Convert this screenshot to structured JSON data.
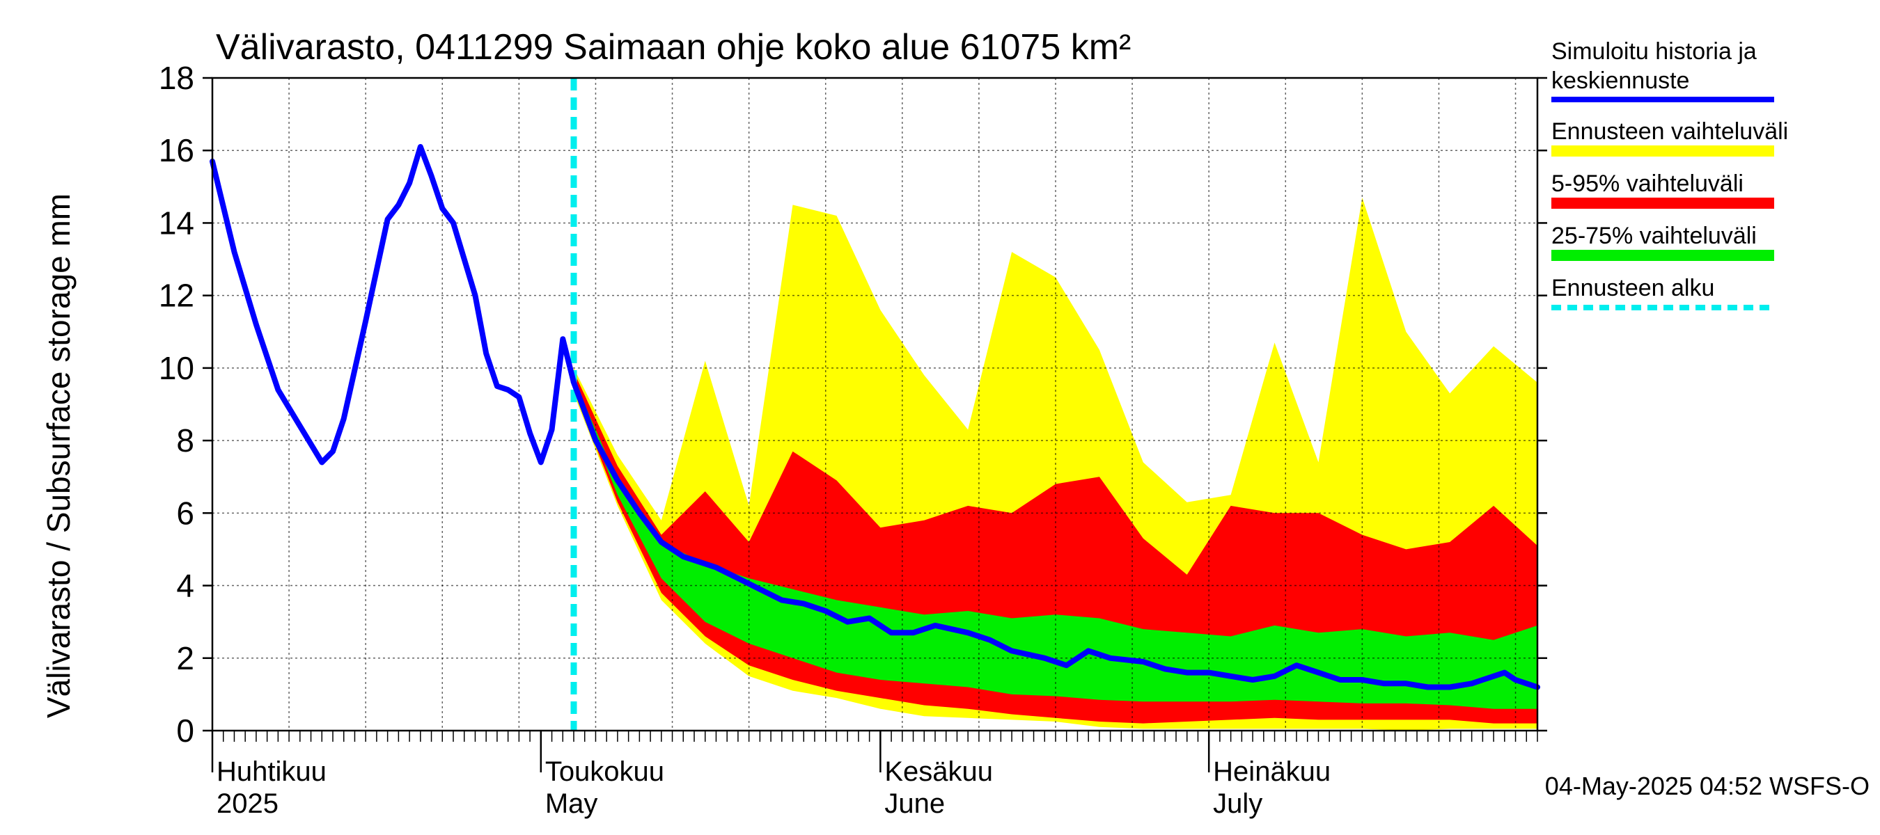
{
  "chart_data": {
    "type": "area",
    "title": "Välivarasto, 0411299 Saimaan ohje koko alue 61075 km²",
    "ylabel": "Välivarasto / Subsurface storage  mm",
    "xlabel": "",
    "ylim": [
      0,
      18
    ],
    "yticks": [
      0,
      2,
      4,
      6,
      8,
      10,
      12,
      14,
      16,
      18
    ],
    "xlim": [
      "2025-04-01",
      "2025-07-31"
    ],
    "grid": true,
    "legend_position": "right",
    "footer": "04-May-2025 04:52 WSFS-O",
    "forecast_start": "2025-05-04",
    "month_labels": [
      {
        "date": "2025-04-01",
        "fi": "Huhtikuu",
        "en": "2025"
      },
      {
        "date": "2025-05-01",
        "fi": "Toukokuu",
        "en": "May"
      },
      {
        "date": "2025-06-01",
        "fi": "Kesäkuu",
        "en": "June"
      },
      {
        "date": "2025-07-01",
        "fi": "Heinäkuu",
        "en": "July"
      }
    ],
    "legend": [
      {
        "label": "Simuloitu historia ja keskiennuste",
        "color": "#0000ff",
        "style": "line"
      },
      {
        "label": "Ennusteen vaihteluväli",
        "color": "#ffff00",
        "style": "band"
      },
      {
        "label": "5-95% vaihteluväli",
        "color": "#ff0000",
        "style": "band"
      },
      {
        "label": "25-75% vaihteluväli",
        "color": "#00ee00",
        "style": "band"
      },
      {
        "label": "Ennusteen alku",
        "color": "#00eeee",
        "style": "dashed"
      }
    ],
    "forecast_dates": [
      "2025-05-04",
      "2025-05-08",
      "2025-05-12",
      "2025-05-16",
      "2025-05-20",
      "2025-05-24",
      "2025-05-28",
      "2025-06-01",
      "2025-06-05",
      "2025-06-09",
      "2025-06-13",
      "2025-06-17",
      "2025-06-21",
      "2025-06-25",
      "2025-06-29",
      "2025-07-03",
      "2025-07-07",
      "2025-07-11",
      "2025-07-15",
      "2025-07-19",
      "2025-07-23",
      "2025-07-27",
      "2025-07-31"
    ],
    "series": [
      {
        "name": "Ennusteen vaihteluväli",
        "role": "band",
        "color": "#ffff00",
        "upper": [
          10.0,
          7.6,
          5.8,
          10.2,
          6.2,
          14.5,
          14.2,
          11.6,
          9.8,
          8.3,
          13.2,
          12.5,
          10.5,
          7.4,
          6.3,
          6.5,
          10.7,
          7.4,
          14.7,
          11.0,
          9.3,
          10.6,
          9.6
        ],
        "lower": [
          9.3,
          6.2,
          3.6,
          2.4,
          1.5,
          1.1,
          0.9,
          0.6,
          0.4,
          0.35,
          0.3,
          0.25,
          0.1,
          0.05,
          0.05,
          0.05,
          0.05,
          0.05,
          0.05,
          0.0,
          0.05,
          0.05,
          0.05
        ]
      },
      {
        "name": "5-95% vaihteluväli",
        "role": "band",
        "color": "#ff0000",
        "upper": [
          9.9,
          7.3,
          5.4,
          6.6,
          5.2,
          7.7,
          6.9,
          5.6,
          5.8,
          6.2,
          6.0,
          6.8,
          7.0,
          5.3,
          4.3,
          6.2,
          6.0,
          6.0,
          5.4,
          5.0,
          5.2,
          6.2,
          5.1
        ],
        "lower": [
          9.4,
          6.3,
          3.8,
          2.6,
          1.8,
          1.4,
          1.1,
          0.9,
          0.7,
          0.6,
          0.45,
          0.35,
          0.25,
          0.2,
          0.25,
          0.3,
          0.35,
          0.3,
          0.3,
          0.3,
          0.3,
          0.2,
          0.2
        ]
      },
      {
        "name": "25-75% vaihteluväli",
        "role": "band",
        "color": "#00ee00",
        "upper": [
          9.7,
          6.9,
          5.2,
          4.6,
          4.2,
          3.9,
          3.6,
          3.4,
          3.2,
          3.3,
          3.1,
          3.2,
          3.1,
          2.8,
          2.7,
          2.6,
          2.9,
          2.7,
          2.8,
          2.6,
          2.7,
          2.5,
          2.9
        ],
        "lower": [
          9.5,
          6.5,
          4.2,
          3.0,
          2.4,
          2.0,
          1.6,
          1.4,
          1.3,
          1.2,
          1.0,
          0.95,
          0.85,
          0.8,
          0.8,
          0.8,
          0.85,
          0.8,
          0.75,
          0.75,
          0.7,
          0.6,
          0.6
        ]
      }
    ],
    "line": {
      "name": "Simuloitu historia ja keskiennuste",
      "color": "#0000ff",
      "points": [
        [
          "2025-04-01",
          15.7
        ],
        [
          "2025-04-03",
          13.2
        ],
        [
          "2025-04-05",
          11.2
        ],
        [
          "2025-04-07",
          9.4
        ],
        [
          "2025-04-09",
          8.4
        ],
        [
          "2025-04-11",
          7.4
        ],
        [
          "2025-04-12",
          7.7
        ],
        [
          "2025-04-13",
          8.6
        ],
        [
          "2025-04-15",
          11.3
        ],
        [
          "2025-04-17",
          14.1
        ],
        [
          "2025-04-18",
          14.5
        ],
        [
          "2025-04-19",
          15.1
        ],
        [
          "2025-04-20",
          16.1
        ],
        [
          "2025-04-21",
          15.3
        ],
        [
          "2025-04-22",
          14.4
        ],
        [
          "2025-04-23",
          14.0
        ],
        [
          "2025-04-25",
          12.0
        ],
        [
          "2025-04-26",
          10.4
        ],
        [
          "2025-04-27",
          9.5
        ],
        [
          "2025-04-28",
          9.4
        ],
        [
          "2025-04-29",
          9.2
        ],
        [
          "2025-04-30",
          8.2
        ],
        [
          "2025-05-01",
          7.4
        ],
        [
          "2025-05-02",
          8.3
        ],
        [
          "2025-05-03",
          10.8
        ],
        [
          "2025-05-04",
          9.6
        ],
        [
          "2025-05-06",
          8.0
        ],
        [
          "2025-05-08",
          6.9
        ],
        [
          "2025-05-10",
          6.0
        ],
        [
          "2025-05-12",
          5.2
        ],
        [
          "2025-05-14",
          4.8
        ],
        [
          "2025-05-17",
          4.5
        ],
        [
          "2025-05-19",
          4.2
        ],
        [
          "2025-05-21",
          3.9
        ],
        [
          "2025-05-23",
          3.6
        ],
        [
          "2025-05-25",
          3.5
        ],
        [
          "2025-05-27",
          3.3
        ],
        [
          "2025-05-29",
          3.0
        ],
        [
          "2025-05-31",
          3.1
        ],
        [
          "2025-06-02",
          2.7
        ],
        [
          "2025-06-04",
          2.7
        ],
        [
          "2025-06-06",
          2.9
        ],
        [
          "2025-06-09",
          2.7
        ],
        [
          "2025-06-11",
          2.5
        ],
        [
          "2025-06-13",
          2.2
        ],
        [
          "2025-06-16",
          2.0
        ],
        [
          "2025-06-18",
          1.8
        ],
        [
          "2025-06-20",
          2.2
        ],
        [
          "2025-06-22",
          2.0
        ],
        [
          "2025-06-25",
          1.9
        ],
        [
          "2025-06-27",
          1.7
        ],
        [
          "2025-06-29",
          1.6
        ],
        [
          "2025-07-01",
          1.6
        ],
        [
          "2025-07-03",
          1.5
        ],
        [
          "2025-07-05",
          1.4
        ],
        [
          "2025-07-07",
          1.5
        ],
        [
          "2025-07-09",
          1.8
        ],
        [
          "2025-07-11",
          1.6
        ],
        [
          "2025-07-13",
          1.4
        ],
        [
          "2025-07-15",
          1.4
        ],
        [
          "2025-07-17",
          1.3
        ],
        [
          "2025-07-19",
          1.3
        ],
        [
          "2025-07-21",
          1.2
        ],
        [
          "2025-07-23",
          1.2
        ],
        [
          "2025-07-25",
          1.3
        ],
        [
          "2025-07-26",
          1.4
        ],
        [
          "2025-07-27",
          1.5
        ],
        [
          "2025-07-28",
          1.6
        ],
        [
          "2025-07-29",
          1.4
        ],
        [
          "2025-07-30",
          1.3
        ],
        [
          "2025-07-31",
          1.2
        ]
      ]
    }
  }
}
